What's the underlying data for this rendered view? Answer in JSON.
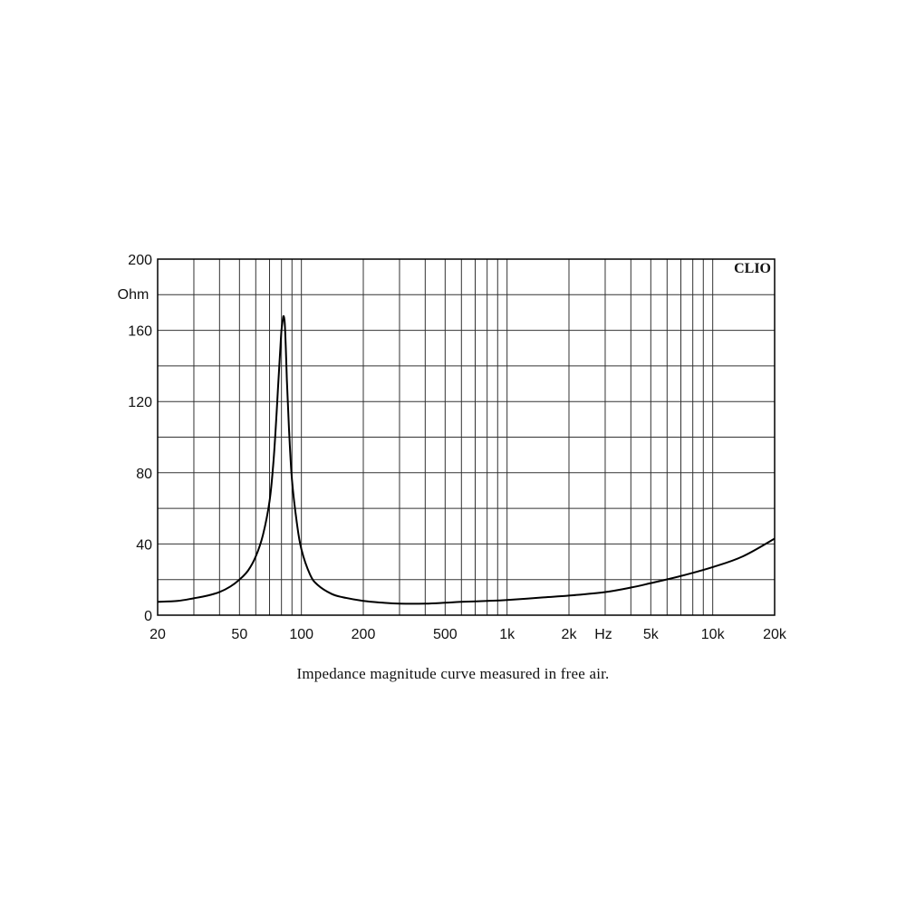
{
  "caption": "Impedance magnitude curve measured in free air.",
  "brand": "CLIO",
  "chart_data": {
    "type": "line",
    "x_scale": "log",
    "xlim": [
      20,
      20000
    ],
    "ylim": [
      0,
      200
    ],
    "ylabel": "Ohm",
    "xlabel": "Hz",
    "grid": true,
    "x_ticks": [
      {
        "value": 20,
        "label": "20"
      },
      {
        "value": 50,
        "label": "50"
      },
      {
        "value": 100,
        "label": "100"
      },
      {
        "value": 200,
        "label": "200"
      },
      {
        "value": 500,
        "label": "500"
      },
      {
        "value": 1000,
        "label": "1k"
      },
      {
        "value": 2000,
        "label": "2k"
      },
      {
        "value": 5000,
        "label": "5k"
      },
      {
        "value": 10000,
        "label": "10k"
      },
      {
        "value": 20000,
        "label": "20k"
      }
    ],
    "y_ticks": [
      {
        "value": 0,
        "label": "0"
      },
      {
        "value": 40,
        "label": "40"
      },
      {
        "value": 80,
        "label": "80"
      },
      {
        "value": 120,
        "label": "120"
      },
      {
        "value": 160,
        "label": "160"
      },
      {
        "value": 200,
        "label": "200"
      }
    ],
    "series": [
      {
        "x": [
          20,
          25,
          30,
          35,
          40,
          45,
          50,
          55,
          60,
          65,
          70,
          73,
          75,
          77,
          79,
          80,
          81,
          82,
          83,
          84,
          85,
          87,
          90,
          95,
          100,
          110,
          120,
          140,
          160,
          200,
          250,
          300,
          400,
          500,
          600,
          800,
          1000,
          1500,
          2000,
          3000,
          4000,
          5000,
          7000,
          10000,
          14000,
          20000
        ],
        "y": [
          7.5,
          8.0,
          9.5,
          11,
          13,
          16,
          20,
          25,
          33,
          45,
          64,
          85,
          105,
          128,
          150,
          160,
          165,
          168,
          164,
          150,
          132,
          105,
          76,
          52,
          37,
          23,
          17,
          12,
          10,
          8,
          7,
          6.5,
          6.5,
          7,
          7.5,
          8,
          8.5,
          10,
          11,
          13,
          15.5,
          18,
          22,
          27,
          33,
          43
        ]
      }
    ]
  }
}
